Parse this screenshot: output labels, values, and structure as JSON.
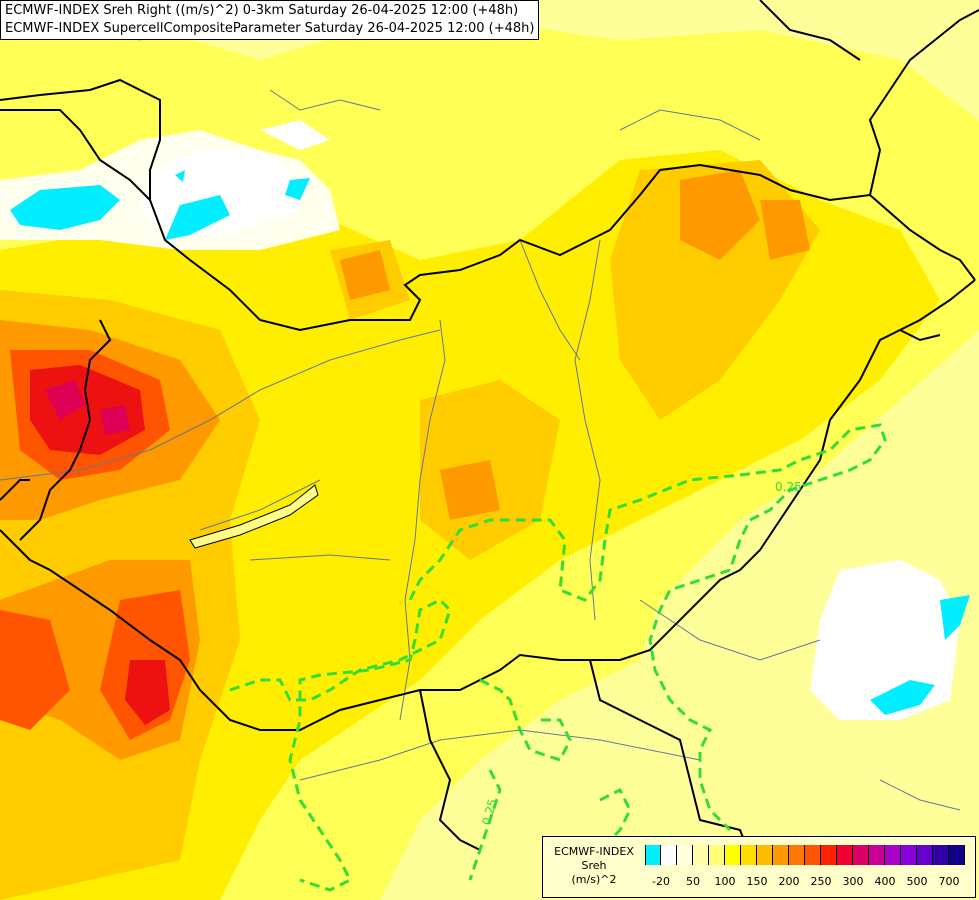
{
  "header": {
    "line1": "ECMWF-INDEX Sreh Right ((m/s)^2) 0-3km Saturday 26-04-2025 12:00 (+48h)",
    "line2": "ECMWF-INDEX SupercellCompositeParameter Saturday 26-04-2025 12:00 (+48h)"
  },
  "map": {
    "contour_label_1": "0.25",
    "contour_label_2": "0.25",
    "contour_color": "#33dd33",
    "border_color": "#000000",
    "river_color": "#667799"
  },
  "legend": {
    "model": "ECMWF-INDEX",
    "variable": "Sreh",
    "unit": "(m/s)^2",
    "colors": [
      "#00eeff",
      "#ffffff",
      "#ffffdd",
      "#ffffaa",
      "#ffff77",
      "#ffff00",
      "#ffdd00",
      "#ffbb00",
      "#ff9900",
      "#ff7700",
      "#ff5500",
      "#ff2200",
      "#ee0033",
      "#dd0066",
      "#cc0099",
      "#aa00cc",
      "#8800dd",
      "#6600cc",
      "#3300aa",
      "#110088"
    ],
    "tick_labels": [
      "-20",
      "50",
      "100",
      "150",
      "200",
      "250",
      "300",
      "400",
      "500",
      "700"
    ]
  }
}
